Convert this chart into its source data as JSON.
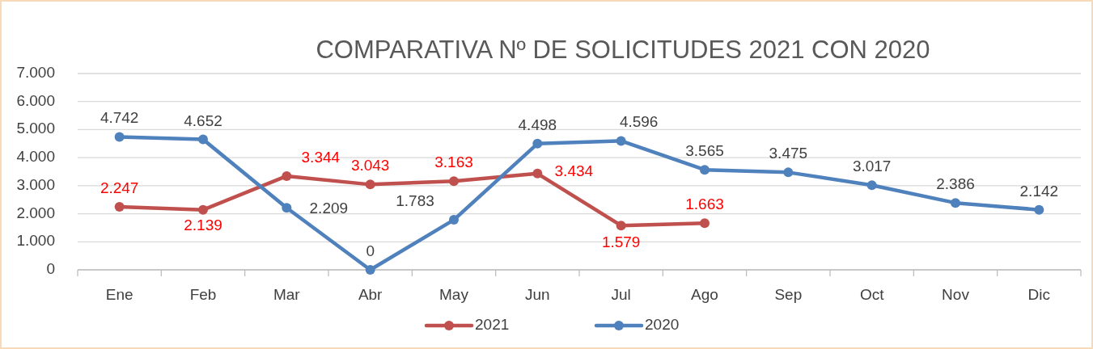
{
  "chart_data": {
    "type": "line",
    "title": "COMPARATIVA Nº DE SOLICITUDES 2021 CON 2020",
    "categories": [
      "Ene",
      "Feb",
      "Mar",
      "Abr",
      "May",
      "Jun",
      "Jul",
      "Ago",
      "Sep",
      "Oct",
      "Nov",
      "Dic"
    ],
    "series": [
      {
        "name": "2021",
        "color": "#c0504d",
        "values": [
          2247,
          2139,
          3344,
          3043,
          3163,
          3434,
          1579,
          1663,
          null,
          null,
          null,
          null
        ],
        "value_labels": [
          "2.247",
          "2.139",
          "3.344",
          "3.043",
          "3.163",
          "3.434",
          "1.579",
          "1.663",
          null,
          null,
          null,
          null
        ]
      },
      {
        "name": "2020",
        "color": "#4f81bd",
        "values": [
          4742,
          4652,
          2209,
          0,
          1783,
          4498,
          4596,
          3565,
          3475,
          3017,
          2386,
          2142
        ],
        "value_labels": [
          "4.742",
          "4.652",
          "2.209",
          "0",
          "1.783",
          "4.498",
          "4.596",
          "3.565",
          "3.475",
          "3.017",
          "2.386",
          "2.142"
        ]
      }
    ],
    "ylim": [
      0,
      7000
    ],
    "yticks": [
      {
        "value": 0,
        "label": "0"
      },
      {
        "value": 1000,
        "label": "1.000"
      },
      {
        "value": 2000,
        "label": "2.000"
      },
      {
        "value": 3000,
        "label": "3.000"
      },
      {
        "value": 4000,
        "label": "4.000"
      },
      {
        "value": 5000,
        "label": "5.000"
      },
      {
        "value": 6000,
        "label": "6.000"
      },
      {
        "value": 7000,
        "label": "7.000"
      }
    ],
    "grid": "y",
    "legend": "bottom",
    "marker": "circle",
    "line_style": "solid"
  }
}
